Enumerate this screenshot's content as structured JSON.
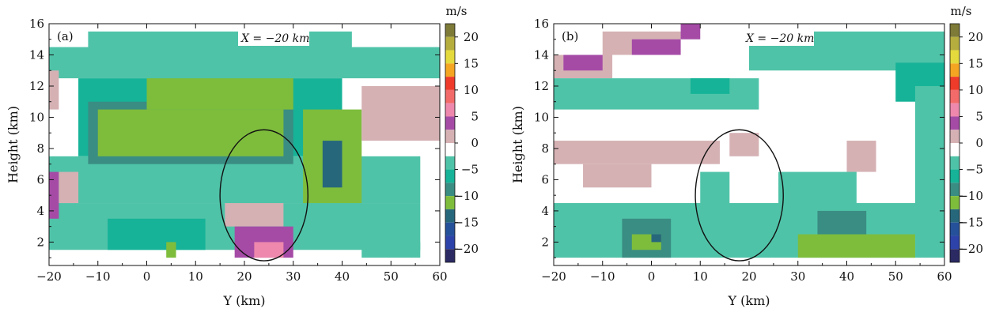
{
  "figure_title": "",
  "colorbar": {
    "unit": "m/s",
    "ticks": [
      20,
      15,
      10,
      5,
      0,
      -5,
      -10,
      -15,
      -20
    ],
    "tick_labels": [
      "20",
      "15",
      "10",
      "5",
      "0",
      "−5",
      "−10",
      "−15",
      "−20"
    ],
    "bins": [
      {
        "min": 20,
        "max": 22.5,
        "color": "#7e7a38"
      },
      {
        "min": 17.5,
        "max": 20,
        "color": "#b6ad3f"
      },
      {
        "min": 15,
        "max": 17.5,
        "color": "#e4da3d"
      },
      {
        "min": 12.5,
        "max": 15,
        "color": "#f4a622"
      },
      {
        "min": 10,
        "max": 12.5,
        "color": "#ee3b2a"
      },
      {
        "min": 7.5,
        "max": 10,
        "color": "#f26b6a"
      },
      {
        "min": 5,
        "max": 7.5,
        "color": "#ee88ac"
      },
      {
        "min": 2.5,
        "max": 5,
        "color": "#a54ba6"
      },
      {
        "min": 0,
        "max": 2.5,
        "color": "#d5b1b4"
      },
      {
        "min": -2.5,
        "max": 0,
        "color": "#ffffff"
      },
      {
        "min": -5,
        "max": -2.5,
        "color": "#4fc3a8"
      },
      {
        "min": -7.5,
        "max": -5,
        "color": "#16b398"
      },
      {
        "min": -10,
        "max": -7.5,
        "color": "#3a8d83"
      },
      {
        "min": -12.5,
        "max": -10,
        "color": "#7ebd3c"
      },
      {
        "min": -15,
        "max": -12.5,
        "color": "#27677c"
      },
      {
        "min": -17.5,
        "max": -15,
        "color": "#25509a"
      },
      {
        "min": -20,
        "max": -17.5,
        "color": "#2d43a9"
      },
      {
        "min": -22.5,
        "max": -20,
        "color": "#2b2a63"
      }
    ]
  },
  "chart_data": [
    {
      "type": "heatmap",
      "panel_label": "(a)",
      "annotation": "X = −20 km",
      "xlabel": "Y (km)",
      "ylabel": "Height (km)",
      "xlim": [
        -20,
        60
      ],
      "ylim": [
        0.5,
        16
      ],
      "x_ticks": [
        -20,
        -10,
        0,
        10,
        20,
        30,
        40,
        50,
        60
      ],
      "x_tick_labels": [
        "−20",
        "−10",
        "0",
        "10",
        "20",
        "30",
        "40",
        "50",
        "60"
      ],
      "y_ticks": [
        2,
        4,
        6,
        8,
        10,
        12,
        14,
        16
      ],
      "y_tick_labels": [
        "2",
        "4",
        "6",
        "8",
        "10",
        "12",
        "14",
        "16"
      ],
      "units": "m/s",
      "ellipse": {
        "center_y_km": 24,
        "center_h_km": 5,
        "half_width_km": 9,
        "half_height_km": 4.2
      },
      "cells": [
        {
          "y0": -20,
          "y1": 60,
          "h0": 12.5,
          "h1": 14.5,
          "v": -4
        },
        {
          "y0": -12,
          "y1": 42,
          "h0": 13.5,
          "h1": 15.5,
          "v": -4
        },
        {
          "y0": -14,
          "y1": 40,
          "h0": 7.5,
          "h1": 12.5,
          "v": -6
        },
        {
          "y0": -20,
          "y1": 56,
          "h0": 4.5,
          "h1": 7.5,
          "v": -5
        },
        {
          "y0": -12,
          "y1": 30,
          "h0": 7.0,
          "h1": 11.0,
          "v": -9
        },
        {
          "y0": -10,
          "y1": 28,
          "h0": 7.5,
          "h1": 10.5,
          "v": -11
        },
        {
          "y0": 0,
          "y1": 30,
          "h0": 10.5,
          "h1": 12.5,
          "v": -11
        },
        {
          "y0": 32,
          "y1": 44,
          "h0": 3.0,
          "h1": 10.5,
          "v": -11
        },
        {
          "y0": 36,
          "y1": 40,
          "h0": 5.5,
          "h1": 8.5,
          "v": -14
        },
        {
          "y0": -20,
          "y1": 56,
          "h0": 1.5,
          "h1": 4.5,
          "v": -4
        },
        {
          "y0": -8,
          "y1": 12,
          "h0": 1.5,
          "h1": 3.5,
          "v": -7
        },
        {
          "y0": 4,
          "y1": 6,
          "h0": 1.0,
          "h1": 2.0,
          "v": -11
        },
        {
          "y0": 16,
          "y1": 28,
          "h0": 3.0,
          "h1": 4.5,
          "v": 1
        },
        {
          "y0": 18,
          "y1": 30,
          "h0": 1.0,
          "h1": 3.0,
          "v": 3
        },
        {
          "y0": 22,
          "y1": 28,
          "h0": 1.0,
          "h1": 2.0,
          "v": 6
        },
        {
          "y0": -20,
          "y1": -18,
          "h0": 3.5,
          "h1": 6.5,
          "v": 3
        },
        {
          "y0": -18,
          "y1": -14,
          "h0": 4.5,
          "h1": 6.5,
          "v": 1
        },
        {
          "y0": -20,
          "y1": -18,
          "h0": 10.5,
          "h1": 13.0,
          "v": 1
        },
        {
          "y0": 44,
          "y1": 60,
          "h0": 8.5,
          "h1": 12.0,
          "v": 0
        },
        {
          "y0": 44,
          "y1": 56,
          "h0": 1.0,
          "h1": 2.0,
          "v": -4
        }
      ]
    },
    {
      "type": "heatmap",
      "panel_label": "(b)",
      "annotation": "X = −20 km",
      "xlabel": "Y (km)",
      "ylabel": "Height (km)",
      "xlim": [
        -20,
        60
      ],
      "ylim": [
        0.5,
        16
      ],
      "x_ticks": [
        -20,
        -10,
        0,
        10,
        20,
        30,
        40,
        50,
        60
      ],
      "x_tick_labels": [
        "−20",
        "−10",
        "0",
        "10",
        "20",
        "30",
        "40",
        "50",
        "60"
      ],
      "y_ticks": [
        2,
        4,
        6,
        8,
        10,
        12,
        14,
        16
      ],
      "y_tick_labels": [
        "2",
        "4",
        "6",
        "8",
        "10",
        "12",
        "14",
        "16"
      ],
      "units": "m/s",
      "ellipse": {
        "center_y_km": 18,
        "center_h_km": 5,
        "half_width_km": 9,
        "half_height_km": 4.2
      },
      "cells": [
        {
          "y0": -20,
          "y1": -8,
          "h0": 12.5,
          "h1": 14.0,
          "v": 1
        },
        {
          "y0": -18,
          "y1": -10,
          "h0": 13.0,
          "h1": 14.0,
          "v": 3
        },
        {
          "y0": -10,
          "y1": 6,
          "h0": 14.0,
          "h1": 15.5,
          "v": 1
        },
        {
          "y0": -4,
          "y1": 6,
          "h0": 14.0,
          "h1": 15.0,
          "v": 3
        },
        {
          "y0": 6,
          "y1": 10,
          "h0": 15.0,
          "h1": 16.0,
          "v": 3
        },
        {
          "y0": -20,
          "y1": 22,
          "h0": 10.5,
          "h1": 12.5,
          "v": -4
        },
        {
          "y0": 8,
          "y1": 16,
          "h0": 11.5,
          "h1": 12.5,
          "v": -7
        },
        {
          "y0": 20,
          "y1": 60,
          "h0": 13.0,
          "h1": 15.5,
          "v": -4
        },
        {
          "y0": 50,
          "y1": 60,
          "h0": 11.0,
          "h1": 13.5,
          "v": -7
        },
        {
          "y0": 54,
          "y1": 60,
          "h0": 2.5,
          "h1": 12.0,
          "v": -4
        },
        {
          "y0": -20,
          "y1": 14,
          "h0": 7.0,
          "h1": 8.5,
          "v": 1
        },
        {
          "y0": -14,
          "y1": 0,
          "h0": 5.5,
          "h1": 7.0,
          "v": 1
        },
        {
          "y0": 16,
          "y1": 22,
          "h0": 7.5,
          "h1": 9.0,
          "v": 1
        },
        {
          "y0": 40,
          "y1": 46,
          "h0": 6.5,
          "h1": 8.5,
          "v": 1
        },
        {
          "y0": -20,
          "y1": 60,
          "h0": 1.0,
          "h1": 4.5,
          "v": -4
        },
        {
          "y0": 10,
          "y1": 16,
          "h0": 3.5,
          "h1": 6.5,
          "v": -4
        },
        {
          "y0": 26,
          "y1": 42,
          "h0": 3.5,
          "h1": 6.5,
          "v": -4
        },
        {
          "y0": -6,
          "y1": 4,
          "h0": 1.0,
          "h1": 3.5,
          "v": -9
        },
        {
          "y0": -4,
          "y1": 2,
          "h0": 1.5,
          "h1": 2.5,
          "v": -11
        },
        {
          "y0": 30,
          "y1": 54,
          "h0": 1.0,
          "h1": 2.5,
          "v": -11
        },
        {
          "y0": 34,
          "y1": 44,
          "h0": 2.5,
          "h1": 4.0,
          "v": -9
        },
        {
          "y0": 0,
          "y1": 2,
          "h0": 2.0,
          "h1": 2.5,
          "v": -14
        }
      ]
    }
  ]
}
